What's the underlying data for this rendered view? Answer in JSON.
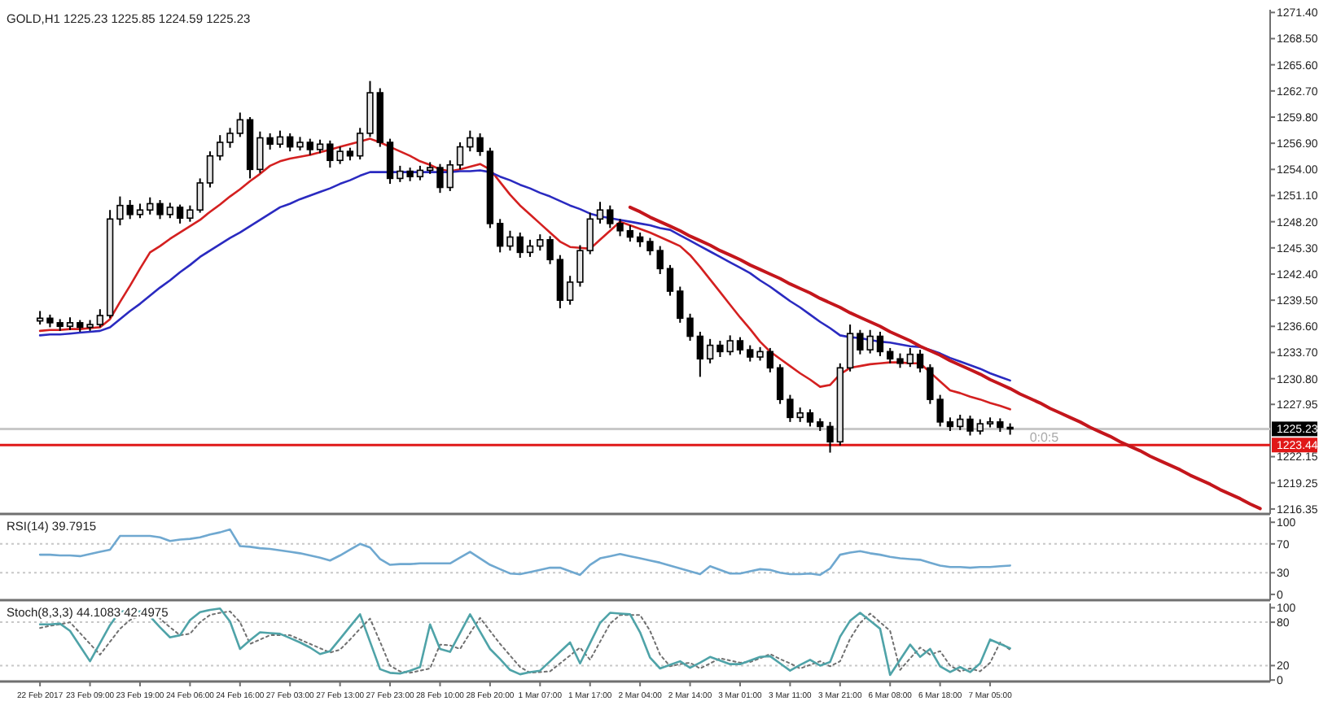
{
  "chart_data": [
    {
      "type": "candlestick",
      "title": "GOLD,H1 1225.23 1225.85 1224.59 1225.23",
      "categories": [
        null,
        null,
        null,
        null,
        null,
        null,
        null,
        null,
        null,
        null,
        null,
        null,
        null,
        null,
        null,
        null,
        null,
        null,
        null,
        null,
        null,
        null,
        null,
        null,
        null,
        null,
        null,
        null,
        null,
        null,
        null,
        null,
        null,
        null,
        null,
        null,
        null,
        null,
        null,
        null,
        null,
        null,
        null,
        null,
        null,
        null,
        null,
        null,
        null,
        null,
        null,
        null,
        null,
        null,
        null,
        null,
        null,
        null,
        null,
        null,
        null,
        null,
        null,
        null,
        null,
        null,
        null,
        null,
        null,
        null,
        null,
        null,
        null,
        null,
        null,
        null,
        null,
        null,
        null,
        null,
        null,
        null,
        null,
        null,
        null,
        null,
        null,
        null,
        null,
        null,
        null,
        null,
        null,
        null,
        null,
        null,
        null,
        null,
        null,
        null,
        null,
        null,
        null,
        null,
        null,
        null,
        null,
        null,
        null,
        null,
        null,
        null,
        null,
        null,
        null,
        null,
        null,
        null,
        null,
        null,
        null,
        null,
        null
      ],
      "ohlc": [
        [
          1237.2,
          1238.3,
          1236.8,
          1237.5
        ],
        [
          1237.5,
          1237.9,
          1236.5,
          1237.0
        ],
        [
          1237.0,
          1237.4,
          1236.1,
          1236.6
        ],
        [
          1236.6,
          1237.6,
          1236.2,
          1237.0
        ],
        [
          1237.0,
          1237.3,
          1236.0,
          1236.5
        ],
        [
          1236.5,
          1237.3,
          1236.1,
          1236.8
        ],
        [
          1236.8,
          1238.5,
          1236.5,
          1237.8
        ],
        [
          1237.8,
          1249.5,
          1237.5,
          1248.5
        ],
        [
          1248.5,
          1251.0,
          1247.8,
          1250.0
        ],
        [
          1250.0,
          1250.6,
          1248.5,
          1249.0
        ],
        [
          1249.0,
          1250.2,
          1248.6,
          1249.5
        ],
        [
          1249.5,
          1250.9,
          1249.0,
          1250.2
        ],
        [
          1250.2,
          1250.6,
          1248.5,
          1249.0
        ],
        [
          1249.0,
          1250.3,
          1248.6,
          1249.8
        ],
        [
          1249.8,
          1250.1,
          1248.0,
          1248.6
        ],
        [
          1248.6,
          1250.0,
          1248.2,
          1249.5
        ],
        [
          1249.5,
          1253.0,
          1249.2,
          1252.5
        ],
        [
          1252.5,
          1256.0,
          1252.0,
          1255.5
        ],
        [
          1255.5,
          1257.8,
          1255.0,
          1257.0
        ],
        [
          1257.0,
          1258.6,
          1256.4,
          1258.0
        ],
        [
          1258.0,
          1260.3,
          1257.6,
          1259.5
        ],
        [
          1259.5,
          1259.8,
          1253.0,
          1254.0
        ],
        [
          1254.0,
          1258.2,
          1253.6,
          1257.5
        ],
        [
          1257.5,
          1258.0,
          1256.2,
          1256.8
        ],
        [
          1256.8,
          1258.3,
          1256.4,
          1257.6
        ],
        [
          1257.6,
          1258.0,
          1256.0,
          1256.5
        ],
        [
          1256.5,
          1257.6,
          1256.1,
          1257.0
        ],
        [
          1257.0,
          1257.4,
          1255.6,
          1256.2
        ],
        [
          1256.2,
          1257.3,
          1255.8,
          1256.8
        ],
        [
          1256.8,
          1257.2,
          1254.2,
          1255.0
        ],
        [
          1255.0,
          1256.5,
          1254.6,
          1256.0
        ],
        [
          1256.0,
          1256.4,
          1255.0,
          1255.5
        ],
        [
          1255.5,
          1258.6,
          1255.1,
          1258.0
        ],
        [
          1258.0,
          1263.8,
          1257.6,
          1262.5
        ],
        [
          1262.5,
          1263.0,
          1256.5,
          1257.0
        ],
        [
          1257.0,
          1257.4,
          1252.4,
          1253.0
        ],
        [
          1253.0,
          1254.4,
          1252.6,
          1253.8
        ],
        [
          1253.8,
          1254.2,
          1252.7,
          1253.2
        ],
        [
          1253.2,
          1254.4,
          1252.8,
          1253.9
        ],
        [
          1253.9,
          1254.8,
          1253.5,
          1254.2
        ],
        [
          1254.2,
          1254.6,
          1251.4,
          1252.0
        ],
        [
          1252.0,
          1255.0,
          1251.6,
          1254.5
        ],
        [
          1254.5,
          1257.0,
          1254.0,
          1256.5
        ],
        [
          1256.5,
          1258.3,
          1256.0,
          1257.5
        ],
        [
          1257.5,
          1258.0,
          1255.5,
          1256.0
        ],
        [
          1256.0,
          1256.4,
          1247.5,
          1248.0
        ],
        [
          1248.0,
          1248.5,
          1244.8,
          1245.5
        ],
        [
          1245.5,
          1247.2,
          1245.0,
          1246.5
        ],
        [
          1246.5,
          1247.0,
          1244.2,
          1244.8
        ],
        [
          1244.8,
          1246.2,
          1244.3,
          1245.5
        ],
        [
          1245.5,
          1246.8,
          1245.0,
          1246.2
        ],
        [
          1246.2,
          1246.6,
          1243.5,
          1244.0
        ],
        [
          1244.0,
          1244.5,
          1238.6,
          1239.5
        ],
        [
          1239.5,
          1242.2,
          1239.0,
          1241.5
        ],
        [
          1241.5,
          1245.6,
          1241.0,
          1245.0
        ],
        [
          1245.0,
          1249.2,
          1244.6,
          1248.5
        ],
        [
          1248.5,
          1250.4,
          1248.0,
          1249.5
        ],
        [
          1249.5,
          1250.0,
          1247.5,
          1248.0
        ],
        [
          1248.0,
          1248.5,
          1246.6,
          1247.2
        ],
        [
          1247.2,
          1247.8,
          1246.0,
          1246.5
        ],
        [
          1246.5,
          1247.0,
          1245.4,
          1246.0
        ],
        [
          1246.0,
          1246.4,
          1244.5,
          1245.0
        ],
        [
          1245.0,
          1245.5,
          1242.4,
          1243.0
        ],
        [
          1243.0,
          1243.4,
          1240.0,
          1240.5
        ],
        [
          1240.5,
          1241.0,
          1237.0,
          1237.5
        ],
        [
          1237.5,
          1238.0,
          1235.0,
          1235.5
        ],
        [
          1235.5,
          1236.0,
          1231.0,
          1233.0
        ],
        [
          1233.0,
          1235.2,
          1232.5,
          1234.5
        ],
        [
          1234.5,
          1235.0,
          1233.2,
          1233.8
        ],
        [
          1233.8,
          1235.6,
          1233.4,
          1235.0
        ],
        [
          1235.0,
          1235.4,
          1233.5,
          1234.0
        ],
        [
          1234.0,
          1234.5,
          1232.7,
          1233.2
        ],
        [
          1233.2,
          1234.3,
          1232.8,
          1233.8
        ],
        [
          1233.8,
          1234.2,
          1231.5,
          1232.0
        ],
        [
          1232.0,
          1232.4,
          1228.0,
          1228.5
        ],
        [
          1228.5,
          1229.0,
          1226.0,
          1226.5
        ],
        [
          1226.5,
          1227.6,
          1226.0,
          1227.0
        ],
        [
          1227.0,
          1227.4,
          1225.5,
          1226.0
        ],
        [
          1226.0,
          1226.4,
          1225.0,
          1225.5
        ],
        [
          1225.5,
          1226.0,
          1222.6,
          1223.8
        ],
        [
          1223.8,
          1232.5,
          1223.4,
          1232.0
        ],
        [
          1232.0,
          1236.8,
          1231.6,
          1235.8
        ],
        [
          1235.8,
          1236.2,
          1233.5,
          1234.0
        ],
        [
          1234.0,
          1236.2,
          1233.6,
          1235.5
        ],
        [
          1235.5,
          1236.0,
          1233.3,
          1233.8
        ],
        [
          1233.8,
          1234.2,
          1232.5,
          1233.0
        ],
        [
          1233.0,
          1233.6,
          1232.0,
          1232.5
        ],
        [
          1232.5,
          1234.2,
          1232.1,
          1233.5
        ],
        [
          1233.5,
          1234.0,
          1231.5,
          1232.0
        ],
        [
          1232.0,
          1232.4,
          1228.0,
          1228.5
        ],
        [
          1228.5,
          1229.0,
          1225.5,
          1226.0
        ],
        [
          1226.0,
          1226.5,
          1225.0,
          1225.5
        ],
        [
          1225.5,
          1226.8,
          1225.1,
          1226.3
        ],
        [
          1226.3,
          1226.7,
          1224.5,
          1225.0
        ],
        [
          1225.0,
          1226.3,
          1224.6,
          1225.8
        ],
        [
          1225.8,
          1226.5,
          1225.4,
          1226.0
        ],
        [
          1226.0,
          1226.4,
          1224.9,
          1225.4
        ],
        [
          1225.4,
          1225.85,
          1224.59,
          1225.23
        ],
        null,
        null,
        null,
        null,
        null,
        null,
        null,
        null,
        null,
        null,
        null,
        null,
        null,
        null,
        null,
        null,
        null,
        null,
        null,
        null,
        null,
        null,
        null,
        null,
        null
      ],
      "series": [
        {
          "type": "line",
          "color": "#d42020",
          "values": [
            1236.1,
            1236.2,
            1236.2,
            1236.3,
            1236.3,
            1236.4,
            1236.5,
            1237.4,
            1239.3,
            1241.1,
            1243.0,
            1244.8,
            1245.5,
            1246.3,
            1247.0,
            1247.7,
            1248.4,
            1249.3,
            1250.1,
            1251.0,
            1251.8,
            1252.7,
            1253.5,
            1254.4,
            1254.9,
            1255.2,
            1255.4,
            1255.6,
            1255.9,
            1256.2,
            1256.5,
            1256.8,
            1257.1,
            1257.4,
            1257.0,
            1256.5,
            1256.0,
            1255.5,
            1254.9,
            1254.5,
            1254.0,
            1253.8,
            1254.0,
            1254.3,
            1254.6,
            1254.0,
            1252.6,
            1251.2,
            1250.0,
            1249.0,
            1248.0,
            1247.0,
            1246.0,
            1245.4,
            1245.3,
            1245.2,
            1246.2,
            1247.2,
            1248.2,
            1247.8,
            1247.4,
            1247.0,
            1246.5,
            1246.0,
            1245.5,
            1244.5,
            1243.2,
            1241.8,
            1240.4,
            1239.0,
            1237.6,
            1236.3,
            1234.9,
            1233.8,
            1233.0,
            1232.2,
            1231.4,
            1230.7,
            1229.9,
            1230.1,
            1231.3,
            1232.0,
            1232.2,
            1232.4,
            1232.5,
            1232.6,
            1232.6,
            1232.5,
            1232.5,
            1231.5,
            1230.5,
            1229.5,
            1229.2,
            1228.8,
            1228.5,
            1228.1,
            1227.8,
            1227.4,
            null,
            null,
            null,
            null,
            null,
            null,
            null,
            null,
            null,
            null,
            null,
            null,
            null,
            null,
            null,
            null,
            null,
            null,
            null,
            null,
            null,
            null,
            null,
            null,
            null
          ]
        },
        {
          "type": "line",
          "color": "#2a2ac0",
          "values": [
            1235.6,
            1235.7,
            1235.7,
            1235.8,
            1235.9,
            1236.0,
            1236.1,
            1236.5,
            1237.4,
            1238.3,
            1239.1,
            1240.0,
            1240.9,
            1241.7,
            1242.6,
            1243.4,
            1244.3,
            1245.0,
            1245.7,
            1246.4,
            1247.0,
            1247.7,
            1248.4,
            1249.1,
            1249.8,
            1250.2,
            1250.7,
            1251.1,
            1251.5,
            1251.9,
            1252.4,
            1252.8,
            1253.3,
            1253.7,
            1253.7,
            1253.7,
            1253.7,
            1253.7,
            1253.7,
            1253.7,
            1253.7,
            1253.7,
            1253.8,
            1253.8,
            1253.9,
            1253.7,
            1253.2,
            1252.8,
            1252.3,
            1251.9,
            1251.4,
            1251.0,
            1250.5,
            1250.0,
            1249.6,
            1249.1,
            1248.8,
            1248.6,
            1248.4,
            1248.2,
            1248.0,
            1247.8,
            1247.5,
            1247.3,
            1246.7,
            1246.1,
            1245.5,
            1244.9,
            1244.3,
            1243.7,
            1243.1,
            1242.5,
            1241.7,
            1241.0,
            1240.2,
            1239.4,
            1238.7,
            1237.9,
            1237.1,
            1236.4,
            1235.6,
            1235.4,
            1235.3,
            1235.1,
            1234.9,
            1234.8,
            1234.6,
            1234.4,
            1234.3,
            1234.0,
            1233.6,
            1233.1,
            1232.7,
            1232.3,
            1231.9,
            1231.4,
            1231.0,
            1230.6,
            null,
            null,
            null,
            null,
            null,
            null,
            null,
            null,
            null,
            null,
            null,
            null,
            null,
            null,
            null,
            null,
            null,
            null,
            null,
            null,
            null,
            null,
            null,
            null,
            null
          ]
        },
        {
          "type": "line",
          "color": "#c4161c",
          "values": [
            null,
            null,
            null,
            null,
            null,
            null,
            null,
            null,
            null,
            null,
            null,
            null,
            null,
            null,
            null,
            null,
            null,
            null,
            null,
            null,
            null,
            null,
            null,
            null,
            null,
            null,
            null,
            null,
            null,
            null,
            null,
            null,
            null,
            null,
            null,
            null,
            null,
            null,
            null,
            null,
            null,
            null,
            null,
            null,
            null,
            null,
            null,
            null,
            null,
            null,
            null,
            null,
            null,
            null,
            null,
            null,
            null,
            null,
            null,
            1249.8,
            1249.3,
            1248.7,
            1248.2,
            1247.7,
            1247.2,
            1246.6,
            1246.1,
            1245.6,
            1245.0,
            1244.5,
            1244.0,
            1243.4,
            1242.9,
            1242.4,
            1241.9,
            1241.3,
            1240.8,
            1240.3,
            1239.7,
            1239.2,
            1238.7,
            1238.1,
            1237.6,
            1237.1,
            1236.6,
            1236.0,
            1235.5,
            1235.0,
            1234.4,
            1233.9,
            1233.4,
            1232.8,
            1232.3,
            1231.8,
            1231.3,
            1230.7,
            1230.2,
            1229.7,
            1229.1,
            1228.6,
            1228.1,
            1227.5,
            1227.0,
            1226.5,
            1226.0,
            1225.4,
            1224.9,
            1224.4,
            1223.8,
            1223.3,
            1222.8,
            1222.2,
            1221.7,
            1221.2,
            1220.7,
            1220.1,
            1219.6,
            1219.1,
            1218.5,
            1218.0,
            1217.5,
            1216.9,
            1216.4
          ]
        }
      ],
      "ylim": [
        1215.8,
        1271.7
      ],
      "yticks": [
        {
          "value": 1271.4,
          "label": "1271.40"
        },
        {
          "value": 1268.5,
          "label": "1268.50"
        },
        {
          "value": 1265.6,
          "label": "1265.60"
        },
        {
          "value": 1262.7,
          "label": "1262.70"
        },
        {
          "value": 1259.8,
          "label": "1259.80"
        },
        {
          "value": 1256.9,
          "label": "1256.90"
        },
        {
          "value": 1254,
          "label": "1254.00"
        },
        {
          "value": 1251.1,
          "label": "1251.10"
        },
        {
          "value": 1248.2,
          "label": "1248.20"
        },
        {
          "value": 1245.3,
          "label": "1245.30"
        },
        {
          "value": 1242.4,
          "label": "1242.40"
        },
        {
          "value": 1239.5,
          "label": "1239.50"
        },
        {
          "value": 1236.6,
          "label": "1236.60"
        },
        {
          "value": 1233.7,
          "label": "1233.70"
        },
        {
          "value": 1230.8,
          "label": "1230.80"
        },
        1227.95,
        1222.15,
        1219.25,
        1216.35
      ],
      "ref_lines": [
        {
          "axis": "y",
          "value": 1225.23,
          "label": "1225.23",
          "color": "#c8c8c8"
        },
        {
          "axis": "y",
          "value": 1223.44,
          "label": "1223.44",
          "color": "#e01818"
        }
      ],
      "annotations": [
        "0:0:5"
      ],
      "tick_labels": "y"
    },
    {
      "type": "line",
      "title": "RSI(14) 39.7915",
      "categories": [
        null,
        null,
        null,
        null,
        null,
        null,
        null,
        null,
        null,
        null,
        null,
        null,
        null,
        null,
        null,
        null,
        null,
        null,
        null,
        null,
        null,
        null,
        null,
        null,
        null,
        null,
        null,
        null,
        null,
        null,
        null,
        null,
        null,
        null,
        null,
        null,
        null,
        null,
        null,
        null,
        null,
        null,
        null,
        null,
        null,
        null,
        null,
        null,
        null,
        null,
        null,
        null,
        null,
        null,
        null,
        null,
        null,
        null,
        null,
        null,
        null,
        null,
        null,
        null,
        null,
        null,
        null,
        null,
        null,
        null,
        null,
        null,
        null,
        null,
        null,
        null,
        null,
        null,
        null,
        null,
        null,
        null,
        null,
        null,
        null,
        null,
        null,
        null,
        null,
        null,
        null,
        null,
        null,
        null,
        null,
        null,
        null,
        null,
        null,
        null,
        null,
        null,
        null,
        null,
        null,
        null,
        null,
        null,
        null,
        null,
        null,
        null,
        null,
        null,
        null,
        null,
        null,
        null,
        null,
        null,
        null,
        null,
        null
      ],
      "series": [
        {
          "color": "#6fa8d0",
          "values": [
            55,
            55,
            54,
            54,
            53,
            56,
            59,
            62,
            81,
            81,
            81,
            81,
            79,
            74,
            76,
            77,
            79,
            83,
            86,
            90,
            67,
            66,
            64,
            63,
            61,
            59,
            57,
            54,
            51,
            47,
            54,
            62,
            70,
            65,
            49,
            41,
            42,
            42,
            43,
            43,
            43,
            43,
            51,
            59,
            50,
            41,
            35,
            29,
            28,
            31,
            34,
            37,
            37,
            32,
            27,
            41,
            50,
            53,
            56,
            53,
            50,
            47,
            44,
            40,
            36,
            32,
            28,
            39,
            34,
            29,
            29,
            32,
            35,
            34,
            30,
            28,
            28,
            29,
            27,
            36,
            55,
            58,
            60,
            57,
            55,
            52,
            50,
            49,
            48,
            44,
            40,
            38,
            38,
            37,
            38,
            38,
            39,
            40,
            null,
            null,
            null,
            null,
            null,
            null,
            null,
            null,
            null,
            null,
            null,
            null,
            null,
            null,
            null,
            null,
            null,
            null,
            null,
            null,
            null,
            null,
            null,
            null,
            null
          ]
        }
      ],
      "ylim": [
        -8,
        107
      ],
      "yticks": [
        0,
        30,
        70,
        100
      ],
      "ref_lines": [
        {
          "axis": "y",
          "value": 30,
          "color": "#c8c8c8",
          "line_style": "dotted"
        },
        {
          "axis": "y",
          "value": 70,
          "color": "#c8c8c8",
          "line_style": "dotted"
        }
      ],
      "tick_labels": "y"
    },
    {
      "type": "line",
      "title": "Stoch(8,3,3) 44.1083 42.4975",
      "categories": [
        "22 Feb 2017",
        null,
        null,
        null,
        null,
        "23 Feb 09:00",
        null,
        null,
        null,
        null,
        "23 Feb 19:00",
        null,
        null,
        null,
        null,
        "24 Feb 06:00",
        null,
        null,
        null,
        null,
        "24 Feb 16:00",
        null,
        null,
        null,
        null,
        "27 Feb 03:00",
        null,
        null,
        null,
        null,
        "27 Feb 13:00",
        null,
        null,
        null,
        null,
        "27 Feb 23:00",
        null,
        null,
        null,
        null,
        "28 Feb 10:00",
        null,
        null,
        null,
        null,
        "28 Feb 20:00",
        null,
        null,
        null,
        null,
        "1 Mar 07:00",
        null,
        null,
        null,
        null,
        "1 Mar 17:00",
        null,
        null,
        null,
        null,
        "2 Mar 04:00",
        null,
        null,
        null,
        null,
        "2 Mar 14:00",
        null,
        null,
        null,
        null,
        "3 Mar 01:00",
        null,
        null,
        null,
        null,
        "3 Mar 11:00",
        null,
        null,
        null,
        null,
        "3 Mar 21:00",
        null,
        null,
        null,
        null,
        "6 Mar 08:00",
        null,
        null,
        null,
        null,
        "6 Mar 18:00",
        null,
        null,
        null,
        null,
        "7 Mar 05:00",
        null,
        null,
        null,
        null,
        null,
        null,
        null,
        null,
        null,
        null,
        null,
        null,
        null,
        null,
        null,
        null,
        null,
        null,
        null,
        null,
        null,
        null,
        null,
        null,
        null,
        null,
        null
      ],
      "series": [
        {
          "color": "#4fa3a8",
          "values": [
            77,
            77,
            78,
            68,
            47,
            26,
            51,
            76,
            95,
            95,
            95,
            88,
            73,
            59,
            62,
            83,
            94,
            97,
            99,
            81,
            43,
            55,
            66,
            65,
            64,
            58,
            52,
            45,
            36,
            40,
            57,
            74,
            91,
            53,
            15,
            10,
            9,
            13,
            18,
            77,
            43,
            39,
            65,
            91,
            67,
            43,
            29,
            14,
            8,
            11,
            13,
            26,
            39,
            52,
            23,
            51,
            79,
            93,
            92,
            91,
            66,
            31,
            16,
            21,
            26,
            17,
            24,
            32,
            27,
            22,
            22,
            27,
            32,
            33,
            23,
            13,
            21,
            28,
            20,
            25,
            60,
            82,
            93,
            82,
            71,
            7,
            28,
            49,
            32,
            43,
            19,
            11,
            18,
            11,
            23,
            56,
            50,
            44,
            null,
            null,
            null,
            null,
            null,
            null,
            null,
            null,
            null,
            null,
            null,
            null,
            null,
            null,
            null,
            null,
            null,
            null,
            null,
            null,
            null,
            null,
            null,
            null,
            null
          ]
        },
        {
          "color": "#707070",
          "line_style": "dotted",
          "values": [
            72,
            75,
            77,
            80,
            65,
            50,
            35,
            53,
            71,
            83,
            89,
            96,
            85,
            73,
            62,
            64,
            80,
            90,
            93,
            95,
            80,
            50,
            56,
            62,
            62,
            62,
            56,
            50,
            44,
            38,
            42,
            56,
            71,
            85,
            53,
            20,
            12,
            10,
            13,
            16,
            49,
            48,
            43,
            65,
            86,
            68,
            50,
            34,
            18,
            10,
            11,
            12,
            23,
            34,
            45,
            28,
            53,
            78,
            90,
            90,
            90,
            68,
            35,
            19,
            22,
            24,
            16,
            23,
            30,
            27,
            24,
            25,
            30,
            36,
            29,
            23,
            16,
            21,
            26,
            19,
            26,
            57,
            79,
            92,
            80,
            68,
            14,
            30,
            45,
            35,
            40,
            20,
            12,
            16,
            12,
            24,
            52,
            42,
            null,
            null,
            null,
            null,
            null,
            null,
            null,
            null,
            null,
            null,
            null,
            null,
            null,
            null,
            null,
            null,
            null,
            null,
            null,
            null,
            null,
            null,
            null,
            null,
            null
          ]
        }
      ],
      "ylim": [
        -2,
        106
      ],
      "yticks": [
        0,
        20,
        80,
        100
      ],
      "ref_lines": [
        {
          "axis": "y",
          "value": 20,
          "color": "#c8c8c8",
          "line_style": "dotted"
        },
        {
          "axis": "y",
          "value": 80,
          "color": "#c8c8c8",
          "line_style": "dotted"
        }
      ]
    }
  ]
}
